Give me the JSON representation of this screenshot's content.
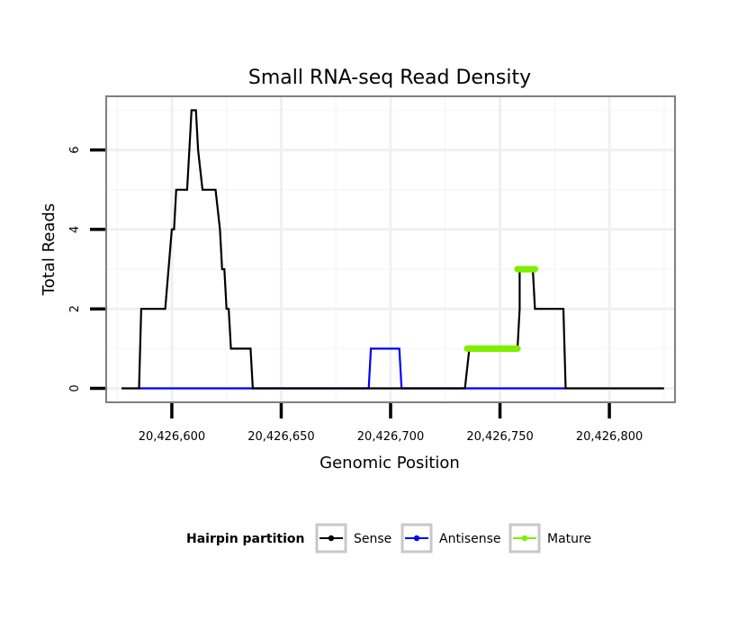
{
  "chart_data": {
    "type": "line",
    "title": "Small RNA-seq Read Density",
    "xlabel": "Genomic Position",
    "ylabel": "Total Reads",
    "xlim": [
      20426570,
      20426830
    ],
    "ylim": [
      -0.35,
      7.35
    ],
    "x_ticks": [
      20426600,
      20426650,
      20426700,
      20426750,
      20426800
    ],
    "x_tick_labels": [
      "20,426,600",
      "20,426,650",
      "20,426,700",
      "20,426,750",
      "20,426,800"
    ],
    "y_ticks": [
      0,
      2,
      4,
      6
    ],
    "y_tick_labels": [
      "0",
      "2",
      "4",
      "6"
    ],
    "grid": true,
    "legend_position": "bottom",
    "legend_title": "Hairpin partition",
    "series": [
      {
        "name": "Sense",
        "color": "#000000",
        "x": [
          20426577,
          20426585,
          20426586,
          20426597,
          20426600,
          20426601,
          20426602,
          20426607,
          20426608,
          20426609,
          20426611,
          20426612,
          20426614,
          20426620,
          20426622,
          20426623,
          20426624,
          20426625,
          20426626,
          20426626,
          20426627,
          20426636,
          20426637,
          20426689,
          20426703,
          20426705,
          20426734,
          20426736,
          20426758,
          20426759,
          20426759,
          20426760,
          20426764,
          20426765,
          20426766,
          20426779,
          20426780,
          20426825
        ],
        "y": [
          0,
          0,
          2,
          2,
          4,
          4,
          5,
          5,
          6,
          7,
          7,
          6,
          5,
          5,
          4,
          3,
          3,
          2,
          2,
          2,
          1,
          1,
          0,
          0,
          0,
          0,
          0,
          1,
          1,
          2,
          3,
          3,
          3,
          3,
          2,
          2,
          0,
          0
        ]
      },
      {
        "name": "Antisense",
        "color": "#0000ff",
        "x": [
          20426585,
          20426690,
          20426691,
          20426704,
          20426705,
          20426780
        ],
        "y": [
          0,
          0,
          1,
          1,
          0,
          0
        ]
      },
      {
        "name": "Mature",
        "color": "#80ee00",
        "segments": [
          {
            "x": [
              20426735,
              20426758
            ],
            "y": [
              1,
              1
            ]
          },
          {
            "x": [
              20426758,
              20426766
            ],
            "y": [
              3,
              3
            ]
          }
        ]
      }
    ]
  }
}
